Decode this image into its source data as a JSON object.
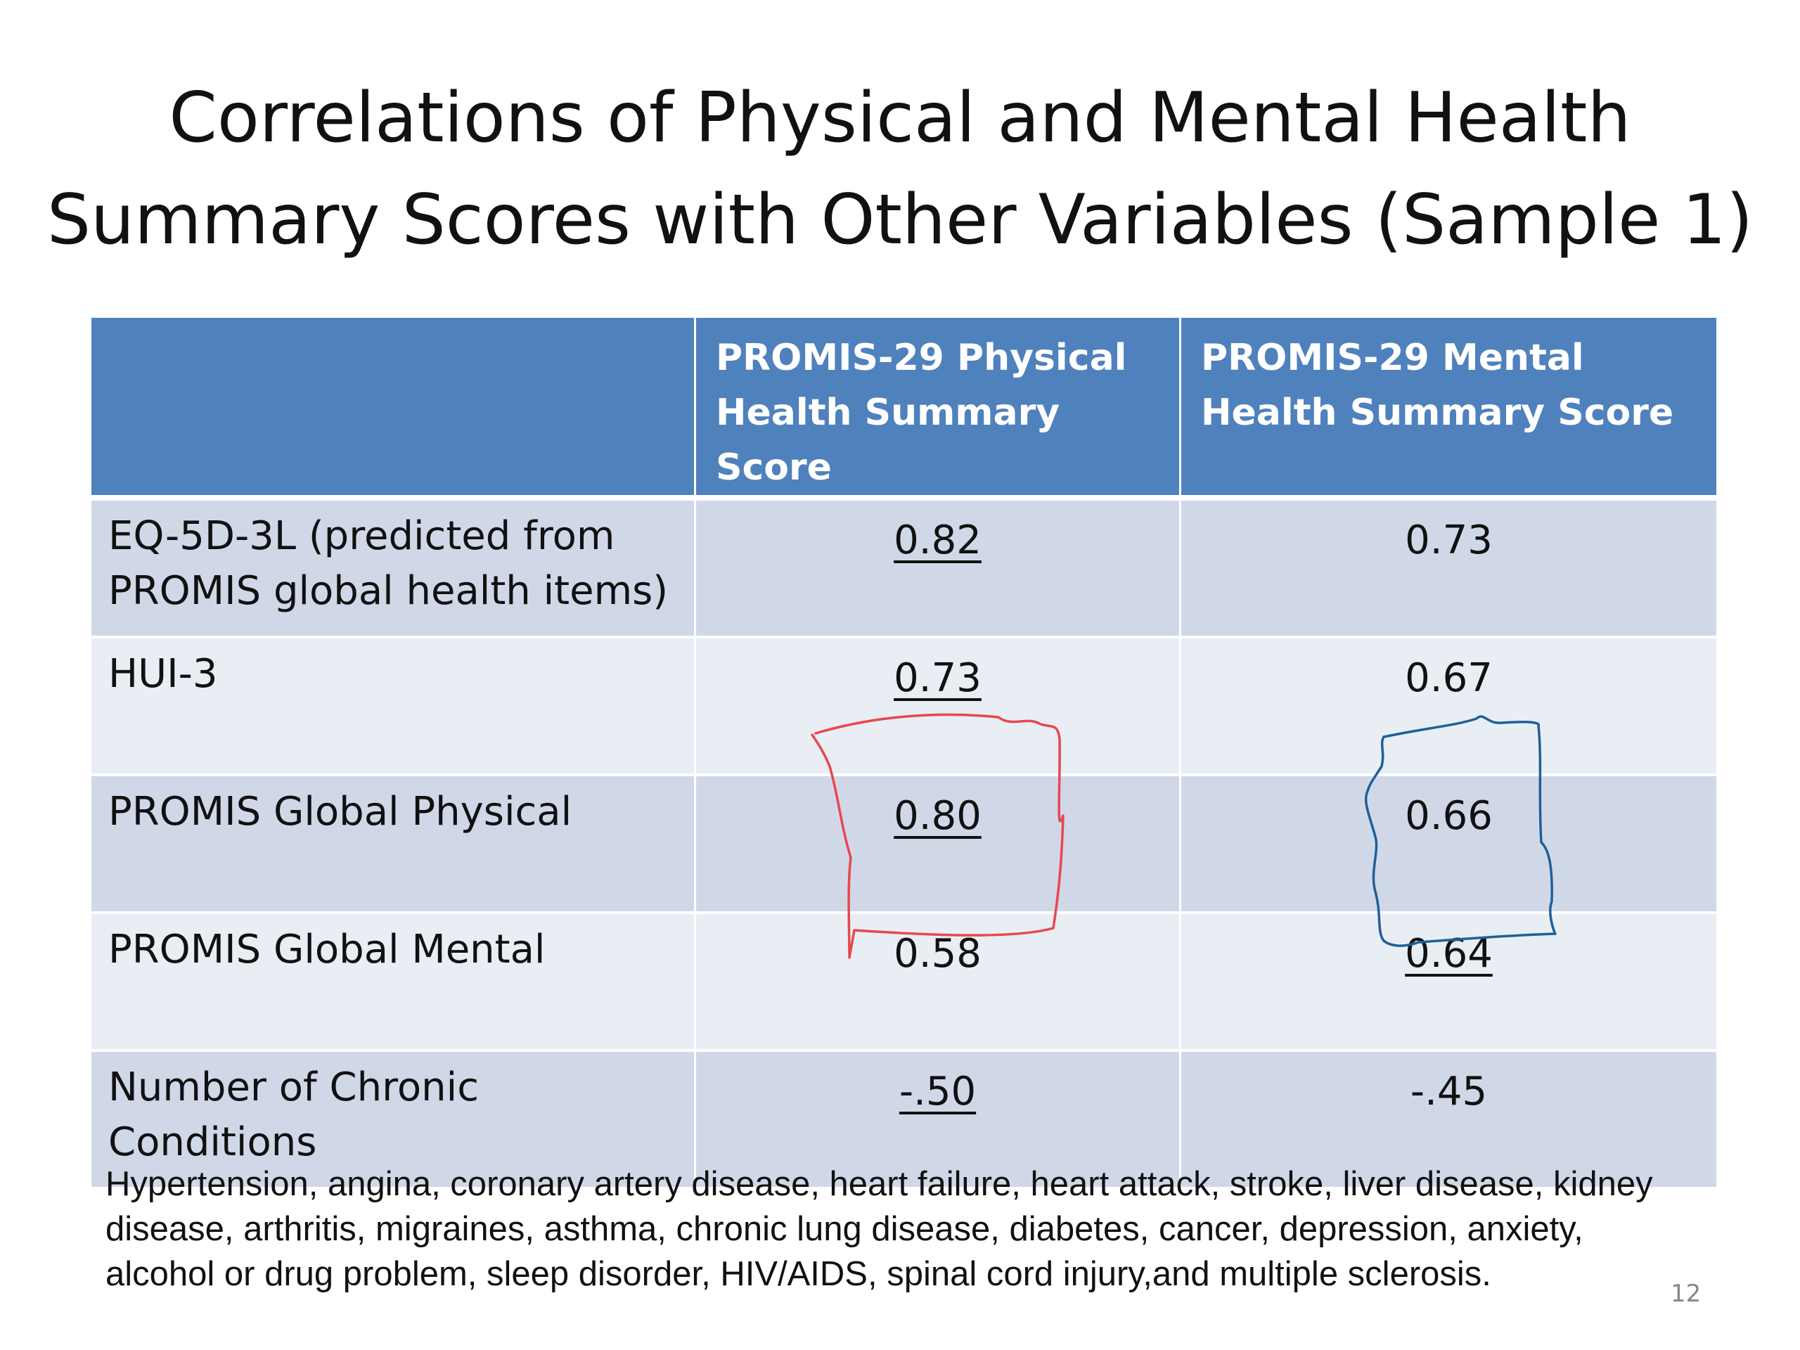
{
  "title": {
    "line1": "Correlations of Physical and Mental Health",
    "line2": "Summary Scores with Other Variables (Sample 1)"
  },
  "table": {
    "headers": [
      "",
      "PROMIS-29 Physical Health Summary Score",
      "PROMIS-29 Mental Health Summary Score"
    ],
    "rows": [
      {
        "label": "EQ-5D-3L (predicted from PROMIS global health items)",
        "physical": "0.82",
        "mental": "0.73",
        "physical_underlined": true,
        "mental_underlined": false
      },
      {
        "label": "HUI-3",
        "physical": "0.73",
        "mental": "0.67",
        "physical_underlined": true,
        "mental_underlined": false
      },
      {
        "label": "PROMIS Global Physical",
        "physical": "0.80",
        "mental": "0.66",
        "physical_underlined": true,
        "mental_underlined": false
      },
      {
        "label": "PROMIS Global Mental",
        "physical": "0.58",
        "mental": "0.64",
        "physical_underlined": false,
        "mental_underlined": true
      },
      {
        "label": "Number of Chronic Conditions",
        "physical": "-.50",
        "mental": "-.45",
        "physical_underlined": true,
        "mental_underlined": false
      }
    ]
  },
  "footnote": "Hypertension, angina, coronary artery disease, heart failure, heart attack, stroke, liver disease, kidney disease, arthritis, migraines, asthma, chronic lung disease, diabetes, cancer, depression, anxiety, alcohol or drug problem, sleep disorder, HIV/AIDS, spinal cord injury,and multiple sclerosis.",
  "page_number": "12",
  "colors": {
    "header_bg": "#4f81bd",
    "row_dark": "#d0d8e8",
    "row_light": "#e9edf4",
    "annotation_red": "#e8474e",
    "annotation_blue": "#1f5f9a"
  }
}
